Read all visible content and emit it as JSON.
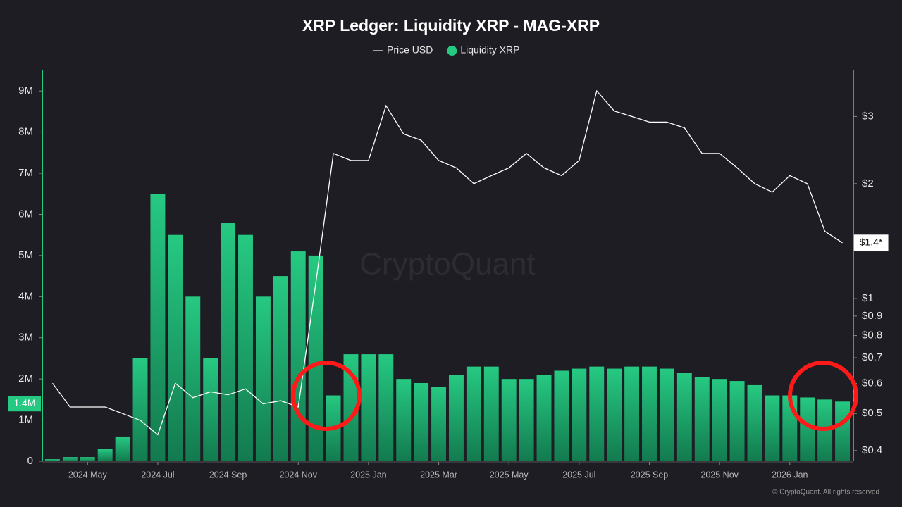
{
  "chart_data": {
    "type": "combo",
    "title": "XRP Ledger: Liquidity XRP - MAG-XRP",
    "watermark": "CryptoQuant",
    "copyright": "© CryptoQuant. All rights reserved",
    "categories": [
      null,
      null,
      "2024 May",
      null,
      null,
      null,
      "2024 Jul",
      null,
      null,
      null,
      "2024 Sep",
      null,
      null,
      null,
      "2024 Nov",
      null,
      null,
      null,
      "2025 Jan",
      null,
      null,
      null,
      "2025 Mar",
      null,
      null,
      null,
      "2025 May",
      null,
      null,
      null,
      "2025 Jul",
      null,
      null,
      null,
      "2025 Sep",
      null,
      null,
      null,
      "2025 Nov",
      null,
      null,
      null,
      "2026 Jan",
      null,
      null,
      null
    ],
    "series": [
      {
        "name": "Price USD",
        "type": "line",
        "axis": "y2",
        "color": "#ffffff",
        "values": [
          0.6,
          0.52,
          0.52,
          0.52,
          0.5,
          0.48,
          0.44,
          0.6,
          0.55,
          0.57,
          0.56,
          0.58,
          0.53,
          0.54,
          0.52,
          1.1,
          2.4,
          2.3,
          2.3,
          3.2,
          2.7,
          2.6,
          2.3,
          2.2,
          2.0,
          2.1,
          2.2,
          2.4,
          2.2,
          2.1,
          2.3,
          3.5,
          3.1,
          3.0,
          2.9,
          2.9,
          2.8,
          2.4,
          2.4,
          2.2,
          2.0,
          1.9,
          2.1,
          2.0,
          1.5,
          1.4
        ]
      },
      {
        "name": "Liquidity XRP",
        "type": "bar",
        "axis": "y",
        "color": "#26c982",
        "values": [
          50000,
          100000,
          100000,
          300000,
          600000,
          2500000,
          6500000,
          5500000,
          4000000,
          2500000,
          5800000,
          5500000,
          4000000,
          4500000,
          5100000,
          5000000,
          1600000,
          2600000,
          2600000,
          2600000,
          2000000,
          1900000,
          1800000,
          2100000,
          2300000,
          2300000,
          2000000,
          2000000,
          2100000,
          2200000,
          2250000,
          2300000,
          2250000,
          2300000,
          2300000,
          2250000,
          2150000,
          2050000,
          2000000,
          1950000,
          1850000,
          1600000,
          1600000,
          1550000,
          1500000,
          1450000
        ]
      }
    ],
    "ylim": [
      0,
      9500000
    ],
    "yticks": [
      0,
      {
        "value": 1000000,
        "label": "1M"
      },
      {
        "value": 2000000,
        "label": "2M"
      },
      {
        "value": 3000000,
        "label": "3M"
      },
      {
        "value": 4000000,
        "label": "4M"
      },
      {
        "value": 5000000,
        "label": "5M"
      },
      {
        "value": 6000000,
        "label": "6M"
      },
      {
        "value": 7000000,
        "label": "7M"
      },
      {
        "value": 8000000,
        "label": "8M"
      },
      {
        "value": 9000000,
        "label": "9M"
      }
    ],
    "y2scale": "log",
    "y2lim": [
      0.375,
      3.96
    ],
    "y2ticks": [
      {
        "value": 0.4,
        "label": "$0.4"
      },
      {
        "value": 0.5,
        "label": "$0.5"
      },
      {
        "value": 0.6,
        "label": "$0.6"
      },
      {
        "value": 0.7,
        "label": "$0.7"
      },
      {
        "value": 0.8,
        "label": "$0.8"
      },
      {
        "value": 0.9,
        "label": "$0.9"
      },
      {
        "value": 1,
        "label": "$1"
      },
      {
        "value": 2,
        "label": "$2"
      },
      {
        "value": 3,
        "label": "$3"
      }
    ],
    "markers": [
      {
        "axis": "y",
        "value": 1400000,
        "label": "1.4M"
      },
      {
        "axis": "y2",
        "value": 1.4,
        "label": "$1.4*"
      }
    ]
  }
}
